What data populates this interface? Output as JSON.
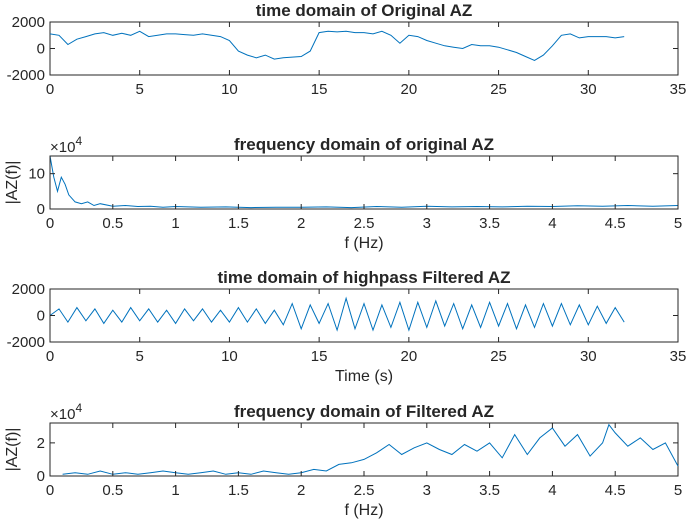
{
  "colors": {
    "series": "#0072BD",
    "axes": "#262626",
    "background": "#ffffff"
  },
  "chart_data": [
    {
      "type": "line",
      "title": "time domain of Original AZ",
      "xlabel": "",
      "ylabel": "",
      "exponent": "",
      "xlim": [
        0,
        35
      ],
      "ylim": [
        -2000,
        2000
      ],
      "xticks": [
        0,
        5,
        10,
        15,
        20,
        25,
        30,
        35
      ],
      "yticks": [
        -2000,
        0,
        2000
      ],
      "xtick_labels": [
        "0",
        "5",
        "10",
        "15",
        "20",
        "25",
        "30",
        "35"
      ],
      "ytick_labels": [
        "-2000",
        "0",
        "2000"
      ],
      "grid": false,
      "series": [
        {
          "x": [
            0,
            0.5,
            1,
            1.5,
            2,
            2.5,
            3,
            3.5,
            4,
            4.5,
            5,
            5.5,
            6,
            6.5,
            7,
            7.5,
            8,
            8.5,
            9,
            9.5,
            10,
            10.5,
            11,
            11.5,
            12,
            12.5,
            13,
            13.5,
            14,
            14.5,
            15,
            15.5,
            16,
            16.5,
            17,
            17.5,
            18,
            18.5,
            19,
            19.5,
            20,
            20.5,
            21,
            21.5,
            22,
            22.5,
            23,
            23.5,
            24,
            24.5,
            25,
            25.5,
            26,
            26.5,
            27,
            27.5,
            28,
            28.5,
            29,
            29.5,
            30,
            30.5,
            31,
            31.5,
            32
          ],
          "y": [
            1100,
            1000,
            300,
            700,
            900,
            1100,
            1200,
            1000,
            1150,
            1000,
            1300,
            900,
            1000,
            1100,
            1100,
            1050,
            1000,
            1100,
            1000,
            900,
            600,
            -200,
            -500,
            -700,
            -500,
            -800,
            -700,
            -650,
            -600,
            -200,
            1200,
            1300,
            1250,
            1300,
            1200,
            1200,
            1100,
            1300,
            1000,
            400,
            1000,
            900,
            600,
            400,
            200,
            100,
            0,
            300,
            200,
            200,
            100,
            -100,
            -300,
            -600,
            -900,
            -500,
            200,
            1000,
            1100,
            800,
            900,
            900,
            900,
            800,
            900
          ]
        }
      ]
    },
    {
      "type": "line",
      "title": "frequency domain of original AZ",
      "xlabel": "f (Hz)",
      "ylabel": "|AZ(f)|",
      "exponent": "10",
      "exponent_power": "4",
      "xlim": [
        0,
        5
      ],
      "ylim": [
        0,
        15
      ],
      "xticks": [
        0,
        0.5,
        1,
        1.5,
        2,
        2.5,
        3,
        3.5,
        4,
        4.5,
        5
      ],
      "yticks": [
        0,
        10
      ],
      "xtick_labels": [
        "0",
        "0.5",
        "1",
        "1.5",
        "2",
        "2.5",
        "3",
        "3.5",
        "4",
        "4.5",
        "5"
      ],
      "ytick_labels": [
        "0",
        "10"
      ],
      "grid": false,
      "series": [
        {
          "x": [
            0,
            0.03,
            0.06,
            0.09,
            0.12,
            0.15,
            0.2,
            0.25,
            0.3,
            0.35,
            0.4,
            0.5,
            0.6,
            0.7,
            0.8,
            0.9,
            1.0,
            1.2,
            1.4,
            1.6,
            1.8,
            2.0,
            2.2,
            2.4,
            2.6,
            2.8,
            3.0,
            3.2,
            3.4,
            3.6,
            3.8,
            4.0,
            4.2,
            4.4,
            4.6,
            4.8,
            5.0
          ],
          "y": [
            15,
            9,
            5,
            9,
            7,
            4,
            2,
            1.5,
            2,
            1,
            1.5,
            0.8,
            1,
            0.7,
            0.8,
            0.5,
            0.7,
            0.5,
            0.6,
            0.4,
            0.5,
            0.5,
            0.6,
            0.4,
            0.7,
            0.5,
            0.8,
            0.6,
            0.7,
            0.6,
            0.8,
            0.7,
            0.9,
            0.8,
            1.0,
            0.8,
            1.0
          ]
        }
      ]
    },
    {
      "type": "line",
      "title": "time domain of highpass Filtered AZ",
      "xlabel": "Time (s)",
      "ylabel": "",
      "exponent": "",
      "xlim": [
        0,
        35
      ],
      "ylim": [
        -2000,
        2000
      ],
      "xticks": [
        0,
        5,
        10,
        15,
        20,
        25,
        30,
        35
      ],
      "yticks": [
        -2000,
        0,
        2000
      ],
      "xtick_labels": [
        "0",
        "5",
        "10",
        "15",
        "20",
        "25",
        "30",
        "35"
      ],
      "ytick_labels": [
        "-2000",
        "0",
        "2000"
      ],
      "grid": false,
      "series": [
        {
          "x": [
            0,
            0.5,
            1,
            1.5,
            2,
            2.5,
            3,
            3.5,
            4,
            4.5,
            5,
            5.5,
            6,
            6.5,
            7,
            7.5,
            8,
            8.5,
            9,
            9.5,
            10,
            10.5,
            11,
            11.5,
            12,
            12.5,
            13,
            13.5,
            14,
            14.5,
            15,
            15.5,
            16,
            16.5,
            17,
            17.5,
            18,
            18.5,
            19,
            19.5,
            20,
            20.5,
            21,
            21.5,
            22,
            22.5,
            23,
            23.5,
            24,
            24.5,
            25,
            25.5,
            26,
            26.5,
            27,
            27.5,
            28,
            28.5,
            29,
            29.5,
            30,
            30.5,
            31,
            31.5,
            32
          ],
          "y": [
            0,
            500,
            -500,
            600,
            -400,
            500,
            -600,
            400,
            -500,
            600,
            -400,
            500,
            -500,
            400,
            -600,
            500,
            -400,
            500,
            -500,
            400,
            -500,
            600,
            -500,
            500,
            -600,
            400,
            -700,
            900,
            -1000,
            800,
            -600,
            900,
            -1100,
            1300,
            -1000,
            900,
            -1100,
            800,
            -900,
            1000,
            -1100,
            1000,
            -900,
            1100,
            -800,
            900,
            -1000,
            800,
            -900,
            1000,
            -800,
            900,
            -1000,
            800,
            -900,
            900,
            -800,
            900,
            -700,
            800,
            -700,
            700,
            -600,
            600,
            -500
          ]
        }
      ]
    },
    {
      "type": "line",
      "title": "frequency domain of Filtered AZ",
      "xlabel": "f (Hz)",
      "ylabel": "|AZ(f)|",
      "exponent": "10",
      "exponent_power": "4",
      "xlim": [
        0,
        5
      ],
      "ylim": [
        0,
        3.2
      ],
      "xticks": [
        0,
        0.5,
        1,
        1.5,
        2,
        2.5,
        3,
        3.5,
        4,
        4.5,
        5
      ],
      "yticks": [
        0,
        2
      ],
      "xtick_labels": [
        "0",
        "0.5",
        "1",
        "1.5",
        "2",
        "2.5",
        "3",
        "3.5",
        "4",
        "4.5",
        "5"
      ],
      "ytick_labels": [
        "0",
        "2"
      ],
      "grid": false,
      "series": [
        {
          "x": [
            0.1,
            0.2,
            0.3,
            0.4,
            0.5,
            0.6,
            0.7,
            0.8,
            0.9,
            1.0,
            1.1,
            1.2,
            1.3,
            1.4,
            1.5,
            1.6,
            1.7,
            1.8,
            1.9,
            2.0,
            2.1,
            2.2,
            2.3,
            2.4,
            2.5,
            2.6,
            2.7,
            2.8,
            2.9,
            3.0,
            3.1,
            3.2,
            3.3,
            3.4,
            3.5,
            3.6,
            3.7,
            3.8,
            3.9,
            4.0,
            4.1,
            4.2,
            4.3,
            4.4,
            4.45,
            4.5,
            4.6,
            4.7,
            4.8,
            4.9,
            5.0
          ],
          "y": [
            0.1,
            0.2,
            0.1,
            0.3,
            0.1,
            0.2,
            0.1,
            0.2,
            0.3,
            0.2,
            0.1,
            0.2,
            0.3,
            0.1,
            0.2,
            0.1,
            0.3,
            0.2,
            0.1,
            0.2,
            0.4,
            0.3,
            0.7,
            0.8,
            1.0,
            1.4,
            1.9,
            1.3,
            1.7,
            2.0,
            1.6,
            1.3,
            1.9,
            1.5,
            2.0,
            1.1,
            2.5,
            1.3,
            2.3,
            2.9,
            1.8,
            2.5,
            1.2,
            2.0,
            3.1,
            2.6,
            1.8,
            2.3,
            1.6,
            2.0,
            0.6
          ]
        }
      ]
    }
  ]
}
